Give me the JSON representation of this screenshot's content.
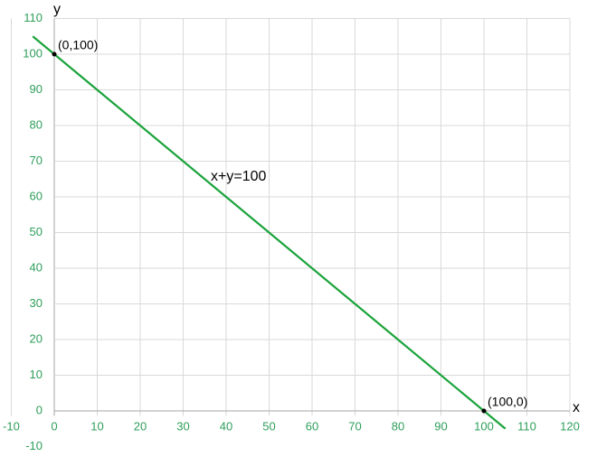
{
  "chart_data": {
    "type": "line",
    "x_label": "x",
    "y_label": "y",
    "annotation": "x+y=100",
    "x": [
      -5,
      105
    ],
    "series": [
      {
        "color": "#1aa33a",
        "values": [
          105,
          -5
        ]
      }
    ],
    "points": [
      {
        "x": 0,
        "y": 100,
        "label": "(0,100)"
      },
      {
        "x": 100,
        "y": 0,
        "label": "(100,0)"
      }
    ],
    "xlim": [
      -10,
      120
    ],
    "ylim": [
      -10,
      110
    ],
    "xticks": [
      -10,
      0,
      10,
      20,
      30,
      40,
      50,
      60,
      70,
      80,
      90,
      100,
      110,
      120
    ],
    "yticks": [
      -10,
      0,
      10,
      20,
      30,
      40,
      50,
      60,
      70,
      80,
      90,
      100,
      110
    ],
    "grid": true,
    "tick_color": "#2e9e5a"
  }
}
